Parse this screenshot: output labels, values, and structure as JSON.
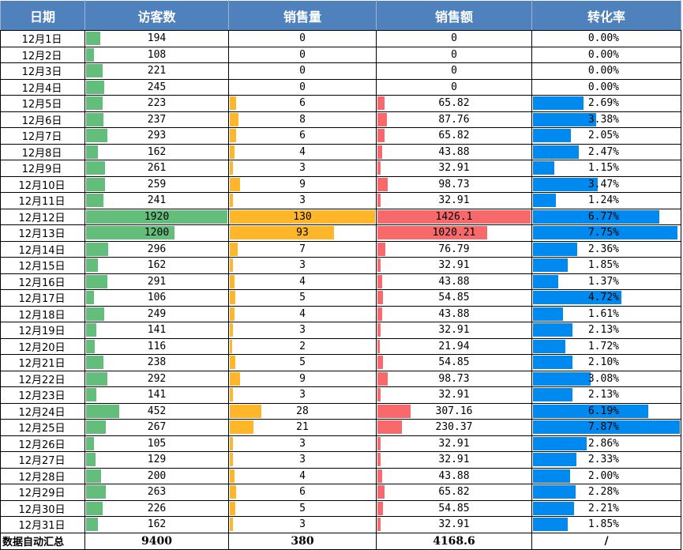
{
  "headers": [
    "日期",
    "访客数",
    "销售量",
    "销售额",
    "转化率"
  ],
  "rows": [
    {
      "date": "12月1日",
      "visitors": 194,
      "sales": 0,
      "amount": "0",
      "rate": "0.00%"
    },
    {
      "date": "12月2日",
      "visitors": 108,
      "sales": 0,
      "amount": "0",
      "rate": "0.00%"
    },
    {
      "date": "12月3日",
      "visitors": 221,
      "sales": 0,
      "amount": "0",
      "rate": "0.00%"
    },
    {
      "date": "12月4日",
      "visitors": 245,
      "sales": 0,
      "amount": "0",
      "rate": "0.00%"
    },
    {
      "date": "12月5日",
      "visitors": 223,
      "sales": 6,
      "amount": "65.82",
      "rate": "2.69%"
    },
    {
      "date": "12月6日",
      "visitors": 237,
      "sales": 8,
      "amount": "87.76",
      "rate": "3.38%"
    },
    {
      "date": "12月7日",
      "visitors": 293,
      "sales": 6,
      "amount": "65.82",
      "rate": "2.05%"
    },
    {
      "date": "12月8日",
      "visitors": 162,
      "sales": 4,
      "amount": "43.88",
      "rate": "2.47%"
    },
    {
      "date": "12月9日",
      "visitors": 261,
      "sales": 3,
      "amount": "32.91",
      "rate": "1.15%"
    },
    {
      "date": "12月10日",
      "visitors": 259,
      "sales": 9,
      "amount": "98.73",
      "rate": "3.47%"
    },
    {
      "date": "12月11日",
      "visitors": 241,
      "sales": 3,
      "amount": "32.91",
      "rate": "1.24%"
    },
    {
      "date": "12月12日",
      "visitors": 1920,
      "sales": 130,
      "amount": "1426.1",
      "rate": "6.77%"
    },
    {
      "date": "12月13日",
      "visitors": 1200,
      "sales": 93,
      "amount": "1020.21",
      "rate": "7.75%"
    },
    {
      "date": "12月14日",
      "visitors": 296,
      "sales": 7,
      "amount": "76.79",
      "rate": "2.36%"
    },
    {
      "date": "12月15日",
      "visitors": 162,
      "sales": 3,
      "amount": "32.91",
      "rate": "1.85%"
    },
    {
      "date": "12月16日",
      "visitors": 291,
      "sales": 4,
      "amount": "43.88",
      "rate": "1.37%"
    },
    {
      "date": "12月17日",
      "visitors": 106,
      "sales": 5,
      "amount": "54.85",
      "rate": "4.72%"
    },
    {
      "date": "12月18日",
      "visitors": 249,
      "sales": 4,
      "amount": "43.88",
      "rate": "1.61%"
    },
    {
      "date": "12月19日",
      "visitors": 141,
      "sales": 3,
      "amount": "32.91",
      "rate": "2.13%"
    },
    {
      "date": "12月20日",
      "visitors": 116,
      "sales": 2,
      "amount": "21.94",
      "rate": "1.72%"
    },
    {
      "date": "12月21日",
      "visitors": 238,
      "sales": 5,
      "amount": "54.85",
      "rate": "2.10%"
    },
    {
      "date": "12月22日",
      "visitors": 292,
      "sales": 9,
      "amount": "98.73",
      "rate": "3.08%"
    },
    {
      "date": "12月23日",
      "visitors": 141,
      "sales": 3,
      "amount": "32.91",
      "rate": "2.13%"
    },
    {
      "date": "12月24日",
      "visitors": 452,
      "sales": 28,
      "amount": "307.16",
      "rate": "6.19%"
    },
    {
      "date": "12月25日",
      "visitors": 267,
      "sales": 21,
      "amount": "230.37",
      "rate": "7.87%"
    },
    {
      "date": "12月26日",
      "visitors": 105,
      "sales": 3,
      "amount": "32.91",
      "rate": "2.86%"
    },
    {
      "date": "12月27日",
      "visitors": 129,
      "sales": 3,
      "amount": "32.91",
      "rate": "2.33%"
    },
    {
      "date": "12月28日",
      "visitors": 200,
      "sales": 4,
      "amount": "43.88",
      "rate": "2.00%"
    },
    {
      "date": "12月29日",
      "visitors": 263,
      "sales": 6,
      "amount": "65.82",
      "rate": "2.28%"
    },
    {
      "date": "12月30日",
      "visitors": 226,
      "sales": 5,
      "amount": "54.85",
      "rate": "2.21%"
    },
    {
      "date": "12月31日",
      "visitors": 162,
      "sales": 3,
      "amount": "32.91",
      "rate": "1.85%"
    }
  ],
  "footer": {
    "label": "数据自动汇总",
    "visitors": "9400",
    "sales": "380",
    "amount": "4168.6",
    "rate": "/"
  },
  "colors": {
    "header_bg": "#4f81bd",
    "visitors_bar": "#63be7b",
    "sales_bar": "#ffb628",
    "amount_bar": "#f8696b",
    "rate_bar": "#008aef"
  }
}
